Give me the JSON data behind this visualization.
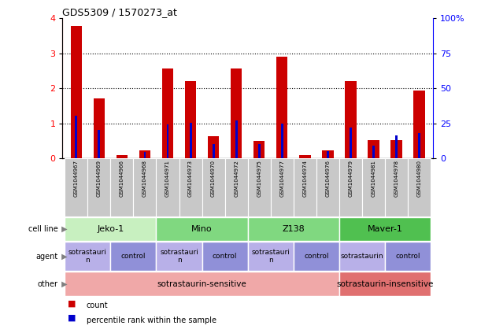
{
  "title": "GDS5309 / 1570273_at",
  "samples": [
    "GSM1044967",
    "GSM1044969",
    "GSM1044966",
    "GSM1044968",
    "GSM1044971",
    "GSM1044973",
    "GSM1044970",
    "GSM1044972",
    "GSM1044975",
    "GSM1044977",
    "GSM1044974",
    "GSM1044976",
    "GSM1044979",
    "GSM1044981",
    "GSM1044978",
    "GSM1044980"
  ],
  "count_values": [
    3.78,
    1.72,
    0.08,
    0.22,
    2.57,
    2.2,
    0.63,
    2.57,
    0.5,
    2.9,
    0.08,
    0.22,
    2.2,
    0.52,
    0.52,
    1.93
  ],
  "percentile_values": [
    1.22,
    0.8,
    0.0,
    0.18,
    0.97,
    1.02,
    0.4,
    1.07,
    0.4,
    1.0,
    0.0,
    0.2,
    0.88,
    0.35,
    0.65,
    0.73
  ],
  "ylim_left": [
    0,
    4
  ],
  "ylim_right": [
    0,
    100
  ],
  "yticks_left": [
    0,
    1,
    2,
    3,
    4
  ],
  "yticks_right": [
    0,
    25,
    50,
    75,
    100
  ],
  "ytick_labels_right": [
    "0",
    "25",
    "50",
    "75",
    "100%"
  ],
  "bar_color_count": "#cc0000",
  "bar_color_pct": "#0000cc",
  "cell_lines": [
    {
      "label": "Jeko-1",
      "start": 0,
      "end": 3,
      "color": "#c8f0c0"
    },
    {
      "label": "Mino",
      "start": 4,
      "end": 7,
      "color": "#80d880"
    },
    {
      "label": "Z138",
      "start": 8,
      "end": 11,
      "color": "#80d880"
    },
    {
      "label": "Maver-1",
      "start": 12,
      "end": 15,
      "color": "#50c050"
    }
  ],
  "agents": [
    {
      "label": "sotrastauri\nn",
      "start": 0,
      "end": 1,
      "color": "#b8b0e8"
    },
    {
      "label": "control",
      "start": 2,
      "end": 3,
      "color": "#9090d8"
    },
    {
      "label": "sotrastauri\nn",
      "start": 4,
      "end": 5,
      "color": "#b8b0e8"
    },
    {
      "label": "control",
      "start": 6,
      "end": 7,
      "color": "#9090d8"
    },
    {
      "label": "sotrastauri\nn",
      "start": 8,
      "end": 9,
      "color": "#b8b0e8"
    },
    {
      "label": "control",
      "start": 10,
      "end": 11,
      "color": "#9090d8"
    },
    {
      "label": "sotrastaurin",
      "start": 12,
      "end": 13,
      "color": "#b8b0e8"
    },
    {
      "label": "control",
      "start": 14,
      "end": 15,
      "color": "#9090d8"
    }
  ],
  "others": [
    {
      "label": "sotrastaurin-sensitive",
      "start": 0,
      "end": 11,
      "color": "#f0a8a8"
    },
    {
      "label": "sotrastaurin-insensitive",
      "start": 12,
      "end": 15,
      "color": "#e07070"
    }
  ],
  "row_labels": [
    "cell line",
    "agent",
    "other"
  ],
  "legend_items": [
    {
      "color": "#cc0000",
      "label": "count"
    },
    {
      "color": "#0000cc",
      "label": "percentile rank within the sample"
    }
  ]
}
